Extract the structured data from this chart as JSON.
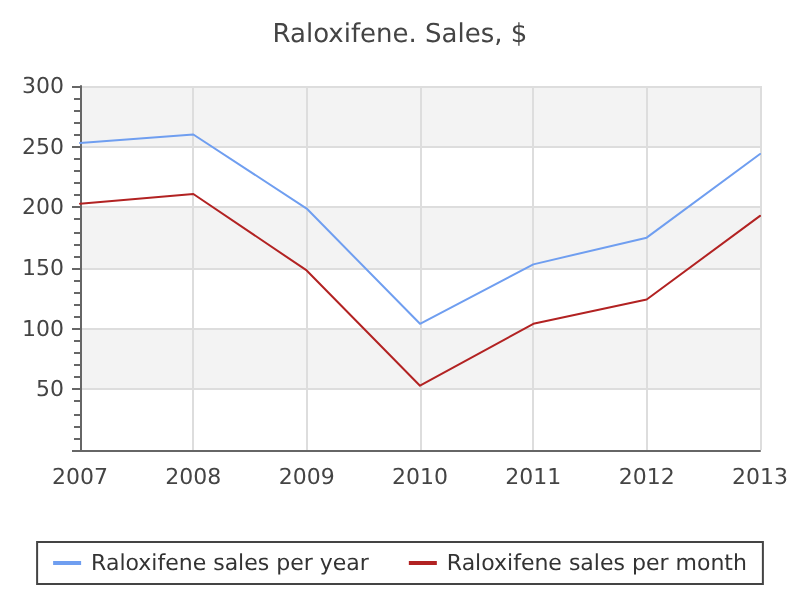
{
  "chart_data": {
    "type": "line",
    "title": "Raloxifene. Sales, $",
    "categories": [
      "2007",
      "2008",
      "2009",
      "2010",
      "2011",
      "2012",
      "2013"
    ],
    "series": [
      {
        "name": "Raloxifene sales per year",
        "color": "#6f9ef0",
        "values": [
          253,
          260,
          199,
          104,
          153,
          175,
          244
        ]
      },
      {
        "name": "Raloxifene sales per month",
        "color": "#b22222",
        "values": [
          203,
          211,
          148,
          53,
          104,
          124,
          193
        ]
      }
    ],
    "ylim": [
      0,
      300
    ],
    "yticks": [
      {
        "value": 0,
        "label": null
      },
      50,
      100,
      150,
      200,
      250,
      300
    ],
    "grid": true,
    "legend": "bottom",
    "marker": "none",
    "line_style": "solid"
  }
}
